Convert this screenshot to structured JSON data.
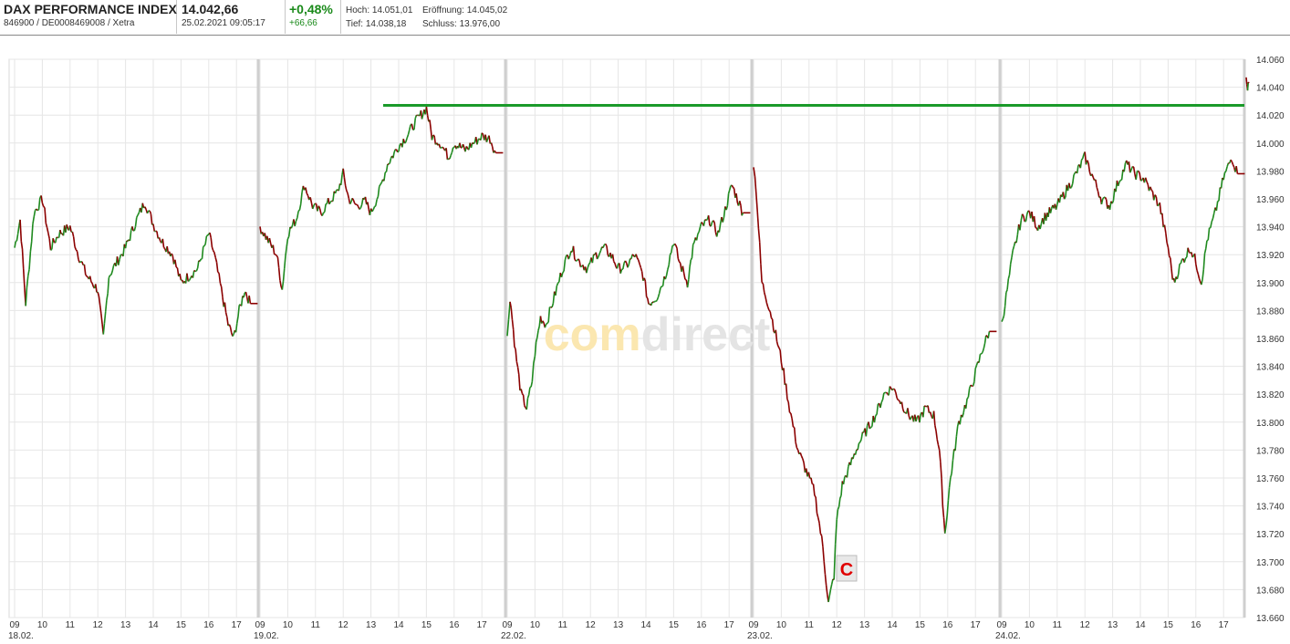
{
  "quote": {
    "name": "DAX PERFORMANCE INDEX",
    "ids": "846900 / DE0008469008 / Xetra",
    "price": "14.042,66",
    "datetime": "25.02.2021 09:05:17",
    "change_pct": "+0,48%",
    "change_abs": "+66,66",
    "high": "Hoch: 14.051,01",
    "open": "Eröffnung: 14.045,02",
    "low": "Tief: 14.038,18",
    "close": "Schluss: 13.976,00"
  },
  "watermark": {
    "part1": "com",
    "part2": "direct"
  },
  "marker": {
    "label": "C"
  },
  "colors": {
    "up": "#1f8a1f",
    "down": "#8b0000",
    "hline": "#1a9a2a",
    "grid": "#e6e6e6",
    "daysep": "#cfcfcf",
    "marker": "#e00000"
  },
  "chart_data": {
    "type": "candlestick",
    "y_ticks": [
      "14.060",
      "14.040",
      "14.020",
      "14.000",
      "13.980",
      "13.960",
      "13.940",
      "13.920",
      "13.900",
      "13.880",
      "13.860",
      "13.840",
      "13.820",
      "13.800",
      "13.780",
      "13.760",
      "13.740",
      "13.720",
      "13.700",
      "13.680",
      "13.660"
    ],
    "ylim": [
      13660,
      14060
    ],
    "horizontal_line": 14027,
    "days": [
      {
        "date": "18.02.",
        "hours": [
          "09",
          "10",
          "11",
          "12",
          "13",
          "14",
          "15",
          "16",
          "17"
        ],
        "path": [
          [
            9.0,
            13925
          ],
          [
            9.2,
            13945
          ],
          [
            9.4,
            13885
          ],
          [
            9.7,
            13950
          ],
          [
            10.0,
            13960
          ],
          [
            10.3,
            13925
          ],
          [
            10.6,
            13935
          ],
          [
            11.0,
            13940
          ],
          [
            11.3,
            13920
          ],
          [
            11.6,
            13905
          ],
          [
            12.0,
            13895
          ],
          [
            12.2,
            13860
          ],
          [
            12.4,
            13905
          ],
          [
            12.7,
            13915
          ],
          [
            13.0,
            13925
          ],
          [
            13.4,
            13945
          ],
          [
            13.7,
            13958
          ],
          [
            14.0,
            13942
          ],
          [
            14.3,
            13930
          ],
          [
            14.7,
            13920
          ],
          [
            15.0,
            13900
          ],
          [
            15.3,
            13905
          ],
          [
            15.6,
            13910
          ],
          [
            16.0,
            13935
          ],
          [
            16.2,
            13920
          ],
          [
            16.5,
            13890
          ],
          [
            16.7,
            13870
          ],
          [
            16.9,
            13860
          ],
          [
            17.1,
            13880
          ],
          [
            17.3,
            13895
          ],
          [
            17.5,
            13885
          ]
        ]
      },
      {
        "date": "19.02.",
        "hours": [
          "09",
          "10",
          "11",
          "12",
          "13",
          "14",
          "15",
          "16",
          "17"
        ],
        "path": [
          [
            9.0,
            13940
          ],
          [
            9.3,
            13930
          ],
          [
            9.6,
            13920
          ],
          [
            9.8,
            13895
          ],
          [
            10.0,
            13935
          ],
          [
            10.3,
            13945
          ],
          [
            10.6,
            13970
          ],
          [
            10.9,
            13955
          ],
          [
            11.2,
            13950
          ],
          [
            11.5,
            13958
          ],
          [
            11.8,
            13965
          ],
          [
            12.0,
            13978
          ],
          [
            12.2,
            13960
          ],
          [
            12.5,
            13955
          ],
          [
            12.8,
            13958
          ],
          [
            13.0,
            13950
          ],
          [
            13.3,
            13965
          ],
          [
            13.6,
            13985
          ],
          [
            14.0,
            13998
          ],
          [
            14.3,
            14005
          ],
          [
            14.6,
            14015
          ],
          [
            15.0,
            14025
          ],
          [
            15.2,
            14005
          ],
          [
            15.5,
            14000
          ],
          [
            15.8,
            13990
          ],
          [
            16.0,
            14000
          ],
          [
            16.4,
            13995
          ],
          [
            16.7,
            14000
          ],
          [
            17.0,
            14005
          ],
          [
            17.3,
            14003
          ],
          [
            17.5,
            13993
          ]
        ]
      },
      {
        "date": "22.02.",
        "hours": [
          "09",
          "10",
          "11",
          "12",
          "13",
          "14",
          "15",
          "16",
          "17"
        ],
        "path": [
          [
            9.0,
            13860
          ],
          [
            9.1,
            13890
          ],
          [
            9.3,
            13850
          ],
          [
            9.5,
            13820
          ],
          [
            9.7,
            13810
          ],
          [
            9.9,
            13830
          ],
          [
            10.0,
            13850
          ],
          [
            10.2,
            13875
          ],
          [
            10.4,
            13870
          ],
          [
            10.7,
            13890
          ],
          [
            11.0,
            13910
          ],
          [
            11.3,
            13925
          ],
          [
            11.6,
            13915
          ],
          [
            11.9,
            13910
          ],
          [
            12.2,
            13920
          ],
          [
            12.5,
            13925
          ],
          [
            12.8,
            13918
          ],
          [
            13.0,
            13910
          ],
          [
            13.3,
            13912
          ],
          [
            13.6,
            13920
          ],
          [
            13.9,
            13905
          ],
          [
            14.1,
            13885
          ],
          [
            14.4,
            13890
          ],
          [
            14.7,
            13905
          ],
          [
            15.0,
            13930
          ],
          [
            15.2,
            13915
          ],
          [
            15.5,
            13900
          ],
          [
            15.7,
            13925
          ],
          [
            16.0,
            13940
          ],
          [
            16.3,
            13945
          ],
          [
            16.6,
            13935
          ],
          [
            16.9,
            13955
          ],
          [
            17.1,
            13970
          ],
          [
            17.3,
            13960
          ],
          [
            17.5,
            13950
          ]
        ]
      },
      {
        "date": "23.02.",
        "hours": [
          "09",
          "10",
          "11",
          "12",
          "13",
          "14",
          "15",
          "16",
          "17"
        ],
        "path": [
          [
            9.0,
            13985
          ],
          [
            9.1,
            13965
          ],
          [
            9.3,
            13900
          ],
          [
            9.6,
            13880
          ],
          [
            10.0,
            13845
          ],
          [
            10.3,
            13810
          ],
          [
            10.6,
            13780
          ],
          [
            10.9,
            13765
          ],
          [
            11.2,
            13750
          ],
          [
            11.5,
            13710
          ],
          [
            11.7,
            13670
          ],
          [
            11.9,
            13690
          ],
          [
            12.0,
            13730
          ],
          [
            12.2,
            13755
          ],
          [
            12.5,
            13770
          ],
          [
            12.8,
            13785
          ],
          [
            13.1,
            13795
          ],
          [
            13.4,
            13805
          ],
          [
            13.7,
            13820
          ],
          [
            14.0,
            13825
          ],
          [
            14.3,
            13815
          ],
          [
            14.6,
            13805
          ],
          [
            14.9,
            13800
          ],
          [
            15.2,
            13810
          ],
          [
            15.5,
            13805
          ],
          [
            15.7,
            13780
          ],
          [
            15.9,
            13720
          ],
          [
            16.1,
            13760
          ],
          [
            16.4,
            13800
          ],
          [
            16.7,
            13815
          ],
          [
            17.0,
            13835
          ],
          [
            17.3,
            13855
          ],
          [
            17.5,
            13865
          ]
        ]
      },
      {
        "date": "24.02.",
        "hours": [
          "09",
          "10",
          "11",
          "12",
          "13",
          "14",
          "15",
          "16",
          "17"
        ],
        "path": [
          [
            9.0,
            13870
          ],
          [
            9.2,
            13895
          ],
          [
            9.4,
            13920
          ],
          [
            9.7,
            13945
          ],
          [
            10.0,
            13950
          ],
          [
            10.3,
            13940
          ],
          [
            10.6,
            13948
          ],
          [
            11.0,
            13955
          ],
          [
            11.3,
            13965
          ],
          [
            11.6,
            13975
          ],
          [
            12.0,
            13990
          ],
          [
            12.3,
            13975
          ],
          [
            12.6,
            13960
          ],
          [
            12.9,
            13955
          ],
          [
            13.2,
            13972
          ],
          [
            13.5,
            13985
          ],
          [
            13.8,
            13978
          ],
          [
            14.1,
            13975
          ],
          [
            14.4,
            13965
          ],
          [
            14.7,
            13955
          ],
          [
            15.0,
            13925
          ],
          [
            15.2,
            13900
          ],
          [
            15.5,
            13915
          ],
          [
            15.8,
            13925
          ],
          [
            16.0,
            13915
          ],
          [
            16.2,
            13900
          ],
          [
            16.4,
            13930
          ],
          [
            16.7,
            13950
          ],
          [
            17.0,
            13975
          ],
          [
            17.3,
            13990
          ],
          [
            17.5,
            13978
          ]
        ]
      },
      {
        "date": "",
        "hours": [],
        "path": [
          [
            9.0,
            14050
          ],
          [
            9.05,
            14040
          ],
          [
            9.1,
            14043
          ]
        ]
      }
    ]
  }
}
